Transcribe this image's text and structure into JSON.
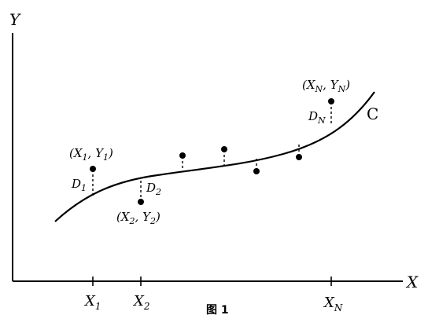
{
  "axes": {
    "y_label": "Y",
    "x_label": "X"
  },
  "ticks": {
    "x1": {
      "main": "X",
      "sub": "1"
    },
    "x2": {
      "main": "X",
      "sub": "2"
    },
    "xn": {
      "main": "X",
      "sub": "N"
    }
  },
  "curve_label": "C",
  "points": {
    "p1": {
      "open": "(",
      "x": "X",
      "xs": "1",
      "comma": ", ",
      "y": "Y",
      "ys": "1",
      "close": ")"
    },
    "p2": {
      "open": "(",
      "x": "X",
      "xs": "2",
      "comma": ", ",
      "y": "Y",
      "ys": "2",
      "close": ")"
    },
    "pn": {
      "open": "(",
      "x": "X",
      "xs": "N",
      "comma": ", ",
      "y": "Y",
      "ys": "N",
      "close": ")"
    }
  },
  "deviations": {
    "d1": {
      "main": "D",
      "sub": "1"
    },
    "d2": {
      "main": "D",
      "sub": "2"
    },
    "dn": {
      "main": "D",
      "sub": "N"
    }
  },
  "caption": "图 1"
}
